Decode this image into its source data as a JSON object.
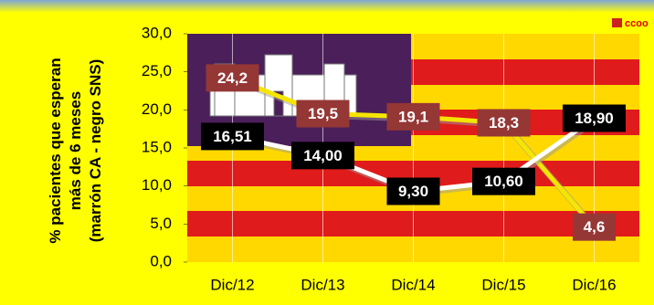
{
  "chart_data": {
    "type": "line",
    "logo": "ccoo",
    "y_label": [
      "% pacientes que esperan",
      "más de 6 meses",
      "(marrón CA - negro SNS)"
    ],
    "categories": [
      "Dic/12",
      "Dic/13",
      "Dic/14",
      "Dic/15",
      "Dic/16"
    ],
    "series": [
      {
        "color": "#f5e600",
        "label_color": "#953735",
        "values": [
          24.2,
          19.5,
          19.1,
          18.3,
          4.6
        ],
        "value_labels": [
          "24,2",
          "19,5",
          "19,1",
          "18,3",
          "4,6"
        ]
      },
      {
        "color": "#ffffff",
        "label_color": "#000000",
        "values": [
          16.51,
          14.0,
          9.3,
          10.6,
          18.9
        ],
        "value_labels": [
          "16,51",
          "14,00",
          "9,30",
          "10,60",
          "18,90"
        ]
      }
    ],
    "ylim": [
      0,
      30
    ],
    "yticks": [
      {
        "value": 0,
        "label": "0,0"
      },
      {
        "value": 5,
        "label": "5,0"
      },
      {
        "value": 10,
        "label": "10,0"
      },
      {
        "value": 15,
        "label": "15,0"
      },
      {
        "value": 20,
        "label": "20,0"
      },
      {
        "value": 25,
        "label": "25,0"
      },
      {
        "value": 30,
        "label": "30,0"
      }
    ],
    "grid": false
  }
}
